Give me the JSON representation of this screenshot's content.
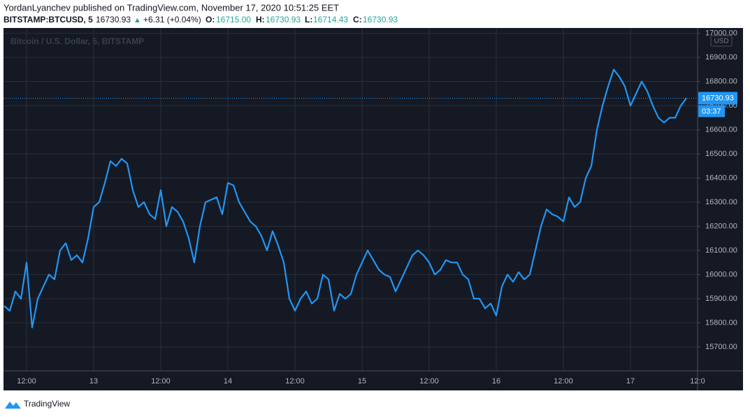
{
  "header": {
    "publisher": "YordanLyanchev published on TradingView.com, November 17, 2020 10:51:25 EET",
    "symbol": "BITSTAMP:BTCUSD, 5",
    "price": "16730.93",
    "arrow": "▲",
    "change": "+6.31 (+0.04%)",
    "open_label": "O:",
    "open": "16715.00",
    "high_label": "H:",
    "high": "16730.93",
    "low_label": "L:",
    "low": "16714.43",
    "close_label": "C:",
    "close": "16730.93"
  },
  "chart_data": {
    "type": "line",
    "watermark": "Bitcoin / U.S. Dollar, 5, BITSTAMP",
    "currency": "USD",
    "countdown": "03:37",
    "categories": [
      null,
      null,
      null,
      null,
      "12:00",
      null,
      null,
      null,
      null,
      null,
      null,
      null,
      null,
      null,
      null,
      null,
      "13",
      null,
      null,
      null,
      null,
      null,
      null,
      null,
      null,
      null,
      null,
      null,
      "12:00",
      null,
      null,
      null,
      null,
      null,
      null,
      null,
      null,
      null,
      null,
      null,
      "14",
      null,
      null,
      null,
      null,
      null,
      null,
      null,
      null,
      null,
      null,
      null,
      "12:00",
      null,
      null,
      null,
      null,
      null,
      null,
      null,
      null,
      null,
      null,
      null,
      "15",
      null,
      null,
      null,
      null,
      null,
      null,
      null,
      null,
      null,
      null,
      null,
      "12:00",
      null,
      null,
      null,
      null,
      null,
      null,
      null,
      null,
      null,
      null,
      null,
      "16",
      null,
      null,
      null,
      null,
      null,
      null,
      null,
      null,
      null,
      null,
      null,
      "12:00",
      null,
      null,
      null,
      null,
      null,
      null,
      null,
      null,
      null,
      null,
      null,
      "17",
      null,
      null,
      null,
      null,
      null,
      null,
      null,
      null,
      null,
      null,
      null,
      "12:0"
    ],
    "series": [
      {
        "name": "BTCUSD",
        "color": "#2196f3",
        "values": [
          15870,
          15850,
          15930,
          15900,
          16050,
          15780,
          15900,
          15950,
          16000,
          15980,
          16100,
          16130,
          16060,
          16080,
          16050,
          16150,
          16280,
          16300,
          16380,
          16470,
          16450,
          16480,
          16460,
          16350,
          16280,
          16300,
          16250,
          16230,
          16350,
          16200,
          16280,
          16260,
          16220,
          16150,
          16050,
          16200,
          16300,
          16310,
          16320,
          16250,
          16380,
          16370,
          16300,
          16260,
          16220,
          16200,
          16160,
          16100,
          16180,
          16120,
          16050,
          15900,
          15850,
          15900,
          15930,
          15880,
          15900,
          16000,
          15980,
          15850,
          15920,
          15900,
          15920,
          16000,
          16050,
          16100,
          16060,
          16020,
          16000,
          15990,
          15930,
          15980,
          16030,
          16080,
          16100,
          16080,
          16050,
          16000,
          16020,
          16060,
          16050,
          16050,
          16000,
          15980,
          15900,
          15900,
          15860,
          15880,
          15830,
          15950,
          16000,
          15970,
          16010,
          15980,
          16000,
          16100,
          16200,
          16270,
          16250,
          16240,
          16220,
          16320,
          16280,
          16300,
          16400,
          16450,
          16600,
          16700,
          16780,
          16850,
          16820,
          16780,
          16700,
          16750,
          16800,
          16760,
          16700,
          16650,
          16630,
          16650,
          16650,
          16700,
          16730.93,
          null,
          null
        ]
      }
    ],
    "ylim": [
      15601,
      17022
    ],
    "yticks": [
      {
        "value": 15700,
        "label": "15700.00"
      },
      {
        "value": 15800,
        "label": "15800.00"
      },
      {
        "value": 15900,
        "label": "15900.00"
      },
      {
        "value": 16000,
        "label": "16000.00"
      },
      {
        "value": 16100,
        "label": "16100.00"
      },
      {
        "value": 16200,
        "label": "16200.00"
      },
      {
        "value": 16300,
        "label": "16300.00"
      },
      {
        "value": 16400,
        "label": "16400.00"
      },
      {
        "value": 16500,
        "label": "16500.00"
      },
      {
        "value": 16600,
        "label": "16600.00"
      },
      {
        "value": 16700,
        "label": "16700.00"
      },
      {
        "value": 16800,
        "label": "16800.00"
      },
      {
        "value": 16900,
        "label": "16900.00"
      },
      {
        "value": 17000,
        "label": "17000.00"
      }
    ],
    "grid": true
  },
  "footer": {
    "brand": "TradingView"
  }
}
